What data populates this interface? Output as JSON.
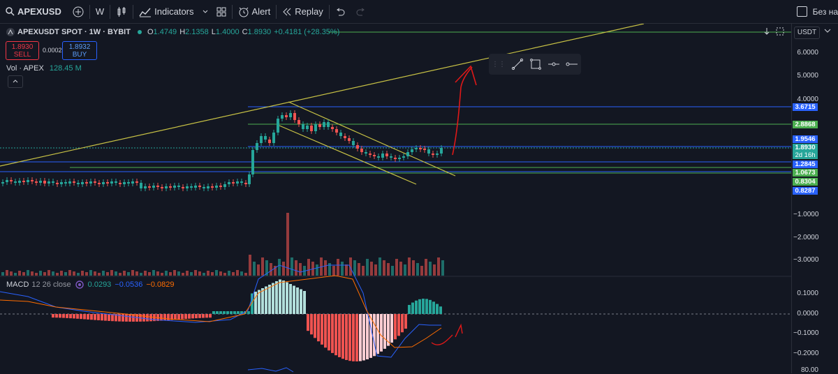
{
  "toolbar": {
    "symbol": "APEXUSD",
    "interval": "W",
    "indicators": "Indicators",
    "alert": "Alert",
    "replay": "Replay",
    "right_text": "Без на"
  },
  "legend": {
    "title": "APEXUSDT SPOT · 1W · BYBIT",
    "o_label": "O",
    "o": "1.4749",
    "h_label": "H",
    "h": "2.1358",
    "l_label": "L",
    "l": "1.4000",
    "c_label": "C",
    "c": "1.8930",
    "change": "+0.4181 (+28.35%)",
    "sell_price": "1.8930",
    "sell_label": "SELL",
    "spread": "0.0002",
    "buy_price": "1.8932",
    "buy_label": "BUY",
    "vol_label": "Vol · APEX",
    "vol_value": "128.45 M",
    "collapse_icon": "chevron-up"
  },
  "macd": {
    "label": "MACD",
    "params": "12 26 close",
    "v1": "0.0293",
    "v2": "−0.0536",
    "v3": "−0.0829",
    "v1_color": "#26a69a",
    "v2_color": "#2962ff",
    "v3_color": "#ff6d00"
  },
  "scale": {
    "currency": "USDT",
    "ticks": [
      "6.0000",
      "5.0000",
      "4.0000",
      "−1.0000",
      "−2.0000",
      "−3.0000",
      "0.1000",
      "0.0000",
      "−0.1000",
      "−0.2000",
      "80.00"
    ],
    "labels": [
      {
        "text": "3.6715",
        "color": "#2962ff"
      },
      {
        "text": "2.8868",
        "color": "#4caf50"
      },
      {
        "text": "1.9546",
        "color": "#2962ff"
      },
      {
        "text": "1.8930",
        "color": "#26a69a"
      },
      {
        "text": "2d 16h",
        "color": "#26a69a"
      },
      {
        "text": "1.2845",
        "color": "#2962ff"
      },
      {
        "text": "1.0673",
        "color": "#4caf50"
      },
      {
        "text": "0.8304",
        "color": "#4caf50"
      },
      {
        "text": "0.8287",
        "color": "#2962ff"
      }
    ]
  },
  "colors": {
    "up": "#26a69a",
    "down": "#ef5350",
    "bg": "#131722",
    "trend": "#c8c245",
    "annot": "#e01818"
  }
}
